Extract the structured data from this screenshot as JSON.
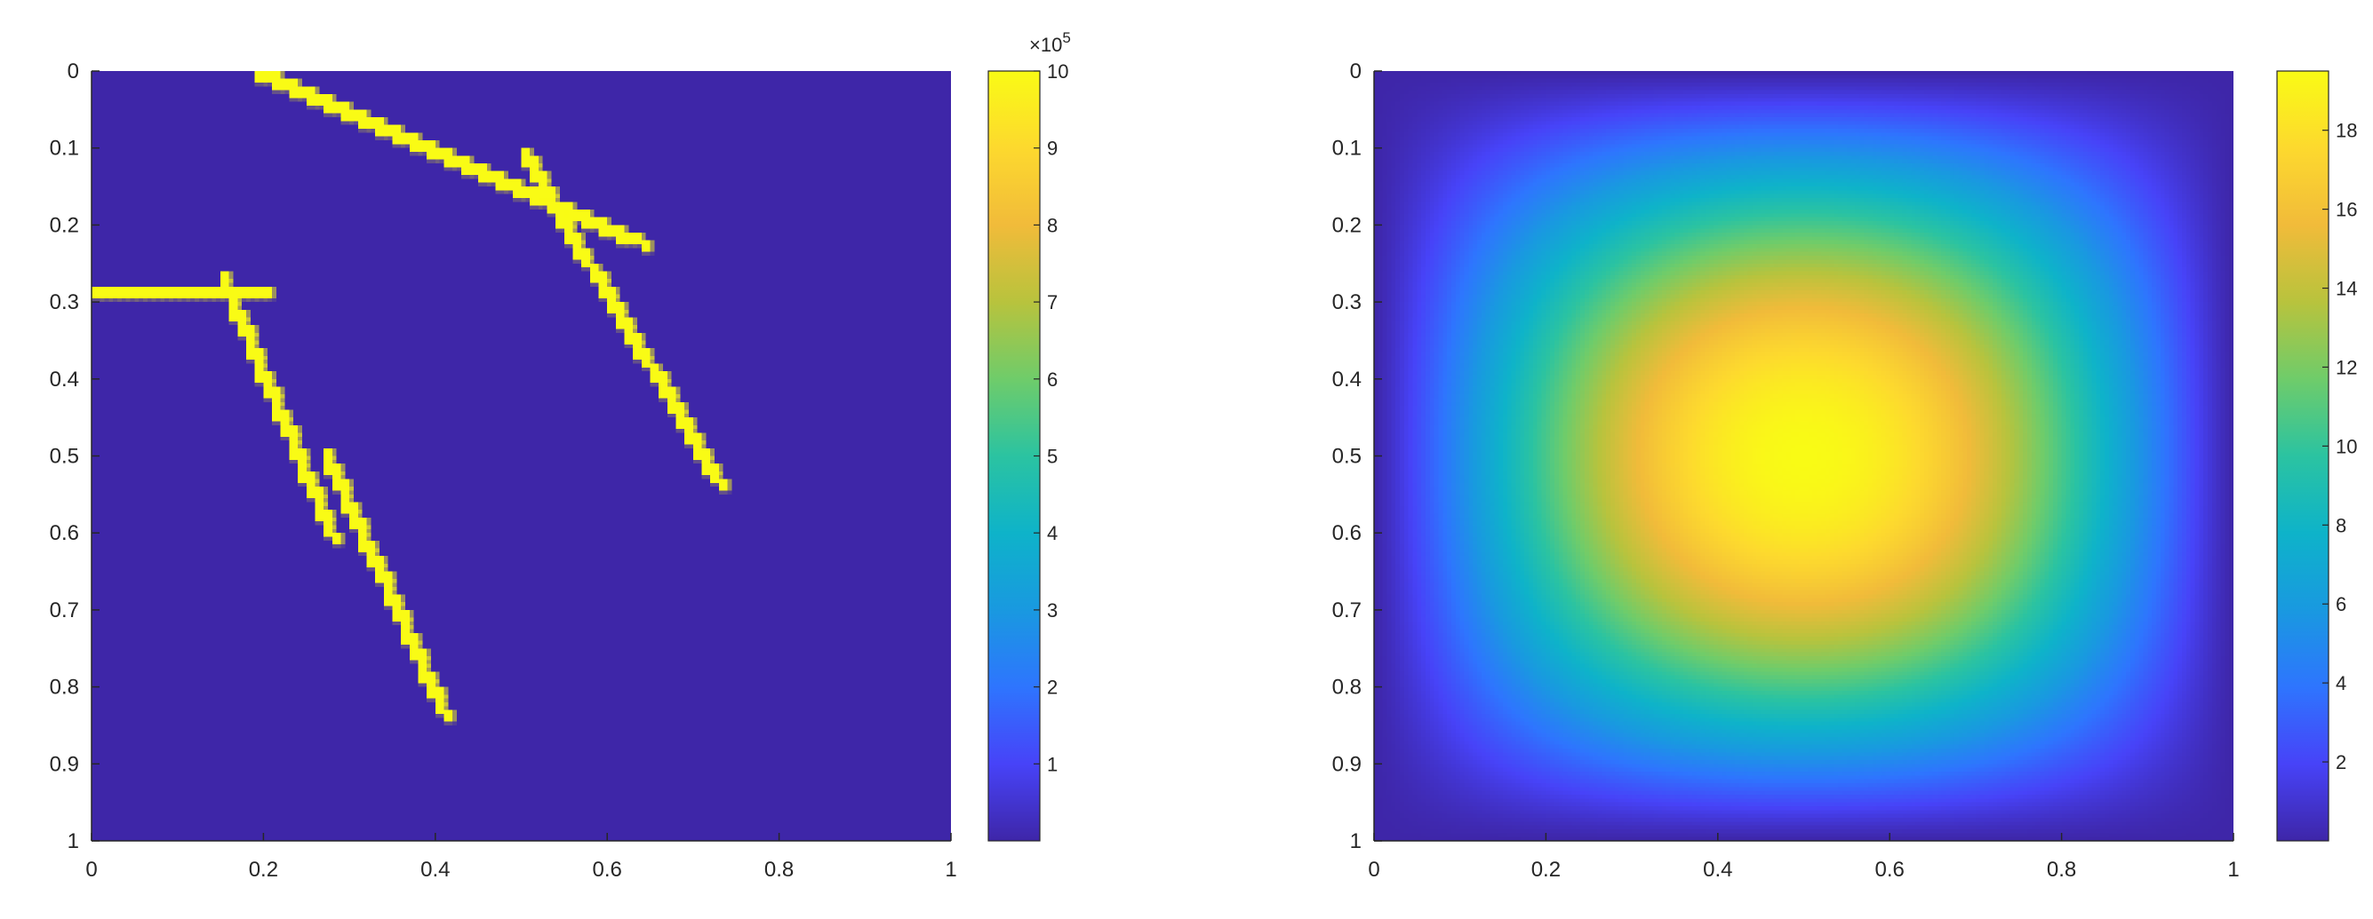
{
  "chart_data": [
    {
      "type": "heatmap",
      "x_range": [
        0,
        1
      ],
      "y_range": [
        0,
        1
      ],
      "y_reversed": true,
      "xticks": [
        0,
        0.2,
        0.4,
        0.6,
        0.8,
        1
      ],
      "xtick_labels": [
        "0",
        "0.2",
        "0.4",
        "0.6",
        "0.8",
        "1"
      ],
      "yticks": [
        0,
        0.1,
        0.2,
        0.3,
        0.4,
        0.5,
        0.6,
        0.7,
        0.8,
        0.9,
        1
      ],
      "ytick_labels": [
        "0",
        "0.1",
        "0.2",
        "0.3",
        "0.4",
        "0.5",
        "0.6",
        "0.7",
        "0.8",
        "0.9",
        "1"
      ],
      "background_value": 0,
      "fracture_value": 1000000,
      "fractures": [
        {
          "start": [
            0.19,
            0.0
          ],
          "end": [
            0.64,
            0.22
          ]
        },
        {
          "start": [
            0.5,
            0.1
          ],
          "end": [
            0.73,
            0.53
          ]
        },
        {
          "start": [
            0.0,
            0.29
          ],
          "end": [
            0.2,
            0.29
          ]
        },
        {
          "start": [
            0.15,
            0.26
          ],
          "end": [
            0.28,
            0.6
          ]
        },
        {
          "start": [
            0.27,
            0.49
          ],
          "end": [
            0.41,
            0.83
          ]
        }
      ],
      "colorbar": {
        "range": [
          0,
          10
        ],
        "ticks": [
          1,
          2,
          3,
          4,
          5,
          6,
          7,
          8,
          9,
          10
        ],
        "tick_labels": [
          "1",
          "2",
          "3",
          "4",
          "5",
          "6",
          "7",
          "8",
          "9",
          "10"
        ],
        "exponent_base": "×10",
        "exponent_power": "5"
      },
      "grid": false,
      "colormap": "parula"
    },
    {
      "type": "heatmap",
      "x_range": [
        0,
        1
      ],
      "y_range": [
        0,
        1
      ],
      "y_reversed": true,
      "xticks": [
        0,
        0.2,
        0.4,
        0.6,
        0.8,
        1
      ],
      "xtick_labels": [
        "0",
        "0.2",
        "0.4",
        "0.6",
        "0.8",
        "1"
      ],
      "yticks": [
        0,
        0.1,
        0.2,
        0.3,
        0.4,
        0.5,
        0.6,
        0.7,
        0.8,
        0.9,
        1
      ],
      "ytick_labels": [
        "0",
        "0.1",
        "0.2",
        "0.3",
        "0.4",
        "0.5",
        "0.6",
        "0.7",
        "0.8",
        "0.9",
        "1"
      ],
      "field": {
        "center": [
          0.5,
          0.49
        ],
        "max_value": 19.5,
        "min_value": 0
      },
      "colorbar": {
        "range": [
          0,
          19.5
        ],
        "ticks": [
          2,
          4,
          6,
          8,
          10,
          12,
          14,
          16,
          18
        ],
        "tick_labels": [
          "2",
          "4",
          "6",
          "8",
          "10",
          "12",
          "14",
          "16",
          "18"
        ]
      },
      "grid": false,
      "colormap": "parula"
    }
  ],
  "colors": {
    "parula": [
      "#3e26a8",
      "#4743f8",
      "#2e75fe",
      "#1999e0",
      "#0eb3c9",
      "#2bc3a1",
      "#6fcc6a",
      "#b8c33d",
      "#f1bb3a",
      "#fdd92e",
      "#f9fb15"
    ],
    "axis": "#262626"
  }
}
